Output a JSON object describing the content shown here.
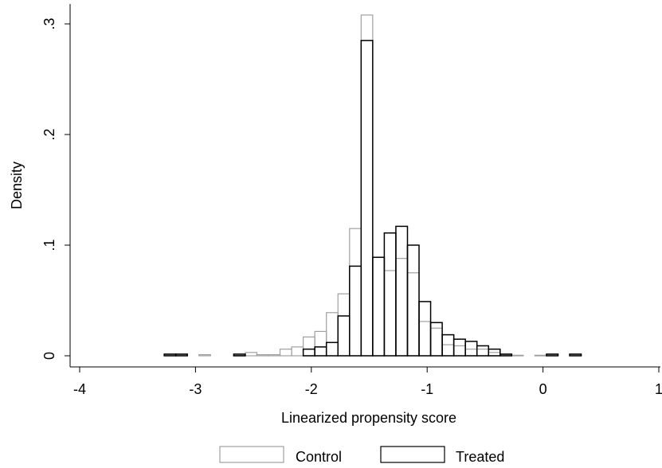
{
  "chart_data": {
    "type": "bar",
    "title": "",
    "xlabel": "Linearized propensity score",
    "ylabel": "Density",
    "xlim": [
      -4,
      1
    ],
    "ylim": [
      0,
      0.3
    ],
    "x_ticks": [
      {
        "value": -4,
        "label": "-4"
      },
      {
        "value": -3,
        "label": "-3"
      },
      {
        "value": -2,
        "label": "-2"
      },
      {
        "value": -1,
        "label": "-1"
      },
      {
        "value": 0,
        "label": "0"
      },
      {
        "value": 1,
        "label": "1"
      }
    ],
    "y_ticks": [
      {
        "value": 0,
        "label": "0"
      },
      {
        "value": 0.1,
        "label": ".1"
      },
      {
        "value": 0.2,
        "label": ".2"
      },
      {
        "value": 0.3,
        "label": ".3"
      }
    ],
    "grid": false,
    "legend_position": "bottom",
    "series": [
      {
        "name": "Control",
        "color": "#a0a0a0",
        "bins": [
          {
            "x0": -3.27,
            "x1": -3.17,
            "y": 0.001
          },
          {
            "x0": -3.17,
            "x1": -3.07,
            "y": 0.001
          },
          {
            "x0": -2.97,
            "x1": -2.87,
            "y": 0.001
          },
          {
            "x0": -2.67,
            "x1": -2.57,
            "y": 0.0005
          },
          {
            "x0": -2.57,
            "x1": -2.47,
            "y": 0.003
          },
          {
            "x0": -2.47,
            "x1": -2.37,
            "y": 0.001
          },
          {
            "x0": -2.37,
            "x1": -2.27,
            "y": 0.001
          },
          {
            "x0": -2.27,
            "x1": -2.17,
            "y": 0.006
          },
          {
            "x0": -2.17,
            "x1": -2.07,
            "y": 0.008
          },
          {
            "x0": -2.07,
            "x1": -1.97,
            "y": 0.017
          },
          {
            "x0": -1.97,
            "x1": -1.87,
            "y": 0.022
          },
          {
            "x0": -1.87,
            "x1": -1.77,
            "y": 0.039
          },
          {
            "x0": -1.77,
            "x1": -1.67,
            "y": 0.056
          },
          {
            "x0": -1.67,
            "x1": -1.57,
            "y": 0.115
          },
          {
            "x0": -1.57,
            "x1": -1.47,
            "y": 0.308
          },
          {
            "x0": -1.47,
            "x1": -1.37,
            "y": 0.089
          },
          {
            "x0": -1.37,
            "x1": -1.27,
            "y": 0.077
          },
          {
            "x0": -1.27,
            "x1": -1.17,
            "y": 0.088
          },
          {
            "x0": -1.17,
            "x1": -1.07,
            "y": 0.075
          },
          {
            "x0": -1.07,
            "x1": -0.97,
            "y": 0.031
          },
          {
            "x0": -0.97,
            "x1": -0.87,
            "y": 0.025
          },
          {
            "x0": -0.87,
            "x1": -0.77,
            "y": 0.01
          },
          {
            "x0": -0.77,
            "x1": -0.67,
            "y": 0.009
          },
          {
            "x0": -0.67,
            "x1": -0.57,
            "y": 0.006
          },
          {
            "x0": -0.57,
            "x1": -0.47,
            "y": 0.006
          },
          {
            "x0": -0.47,
            "x1": -0.37,
            "y": 0.003
          },
          {
            "x0": -0.37,
            "x1": -0.27,
            "y": 0.001
          },
          {
            "x0": -0.27,
            "x1": -0.17,
            "y": 0.0005
          },
          {
            "x0": -0.07,
            "x1": 0.03,
            "y": 0.0005
          },
          {
            "x0": 0.03,
            "x1": 0.13,
            "y": 0.001
          },
          {
            "x0": 0.23,
            "x1": 0.33,
            "y": 0.001
          }
        ]
      },
      {
        "name": "Treated",
        "color": "#000000",
        "bins": [
          {
            "x0": -3.27,
            "x1": -3.17,
            "y": 0.0015
          },
          {
            "x0": -3.17,
            "x1": -3.07,
            "y": 0.0015
          },
          {
            "x0": -2.67,
            "x1": -2.57,
            "y": 0.0015
          },
          {
            "x0": -2.07,
            "x1": -1.97,
            "y": 0.006
          },
          {
            "x0": -1.97,
            "x1": -1.87,
            "y": 0.008
          },
          {
            "x0": -1.87,
            "x1": -1.77,
            "y": 0.012
          },
          {
            "x0": -1.77,
            "x1": -1.67,
            "y": 0.036
          },
          {
            "x0": -1.67,
            "x1": -1.57,
            "y": 0.081
          },
          {
            "x0": -1.57,
            "x1": -1.47,
            "y": 0.285
          },
          {
            "x0": -1.47,
            "x1": -1.37,
            "y": 0.089
          },
          {
            "x0": -1.37,
            "x1": -1.27,
            "y": 0.111
          },
          {
            "x0": -1.27,
            "x1": -1.17,
            "y": 0.117
          },
          {
            "x0": -1.17,
            "x1": -1.07,
            "y": 0.1
          },
          {
            "x0": -1.07,
            "x1": -0.97,
            "y": 0.049
          },
          {
            "x0": -0.97,
            "x1": -0.87,
            "y": 0.03
          },
          {
            "x0": -0.87,
            "x1": -0.77,
            "y": 0.019
          },
          {
            "x0": -0.77,
            "x1": -0.67,
            "y": 0.015
          },
          {
            "x0": -0.67,
            "x1": -0.57,
            "y": 0.013
          },
          {
            "x0": -0.57,
            "x1": -0.47,
            "y": 0.009
          },
          {
            "x0": -0.47,
            "x1": -0.37,
            "y": 0.006
          },
          {
            "x0": -0.37,
            "x1": -0.27,
            "y": 0.0015
          },
          {
            "x0": 0.03,
            "x1": 0.13,
            "y": 0.0015
          },
          {
            "x0": 0.23,
            "x1": 0.33,
            "y": 0.0015
          }
        ]
      }
    ]
  }
}
